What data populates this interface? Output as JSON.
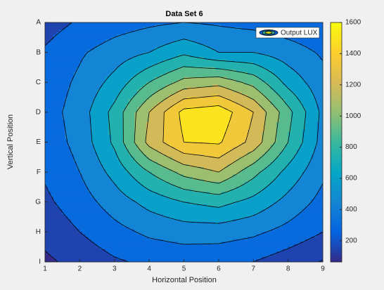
{
  "chart_data": {
    "type": "contour",
    "title": "Data Set 6",
    "x_label": "Horizontal Position",
    "y_label": "Vertical Position",
    "x": [
      1,
      2,
      3,
      4,
      5,
      6,
      7,
      8,
      9
    ],
    "categories": [
      "A",
      "B",
      "C",
      "D",
      "E",
      "F",
      "G",
      "H",
      "I"
    ],
    "xlim": [
      1,
      9
    ],
    "xticks": [
      1,
      2,
      3,
      4,
      5,
      6,
      7,
      8,
      9
    ],
    "z": [
      [
        230,
        320,
        380,
        420,
        450,
        430,
        400,
        360,
        330
      ],
      [
        320,
        430,
        520,
        600,
        720,
        600,
        600,
        520,
        430
      ],
      [
        360,
        480,
        650,
        900,
        1100,
        1150,
        1000,
        700,
        500
      ],
      [
        380,
        520,
        800,
        1200,
        1550,
        1600,
        1350,
        950,
        560
      ],
      [
        360,
        500,
        780,
        1250,
        1500,
        1520,
        1300,
        900,
        540
      ],
      [
        320,
        450,
        650,
        900,
        1100,
        1200,
        950,
        700,
        480
      ],
      [
        270,
        380,
        520,
        650,
        750,
        800,
        700,
        550,
        400
      ],
      [
        200,
        300,
        400,
        480,
        520,
        520,
        480,
        400,
        300
      ],
      [
        120,
        200,
        280,
        330,
        350,
        340,
        300,
        220,
        140
      ]
    ],
    "levels": [
      150,
      300,
      450,
      600,
      750,
      900,
      1050,
      1200,
      1350,
      1500
    ],
    "clim": [
      64,
      1600
    ],
    "cticks": [
      200,
      400,
      600,
      800,
      1000,
      1200,
      1400,
      1600
    ],
    "colormap": [
      "#352a87",
      "#0363e1",
      "#1485d4",
      "#06a7c6",
      "#38b99e",
      "#92bf73",
      "#d9ba56",
      "#fcce2e",
      "#f9fb0e"
    ],
    "series": [
      {
        "name": "Output LUX"
      }
    ],
    "legend": "northeast",
    "grid": false
  }
}
